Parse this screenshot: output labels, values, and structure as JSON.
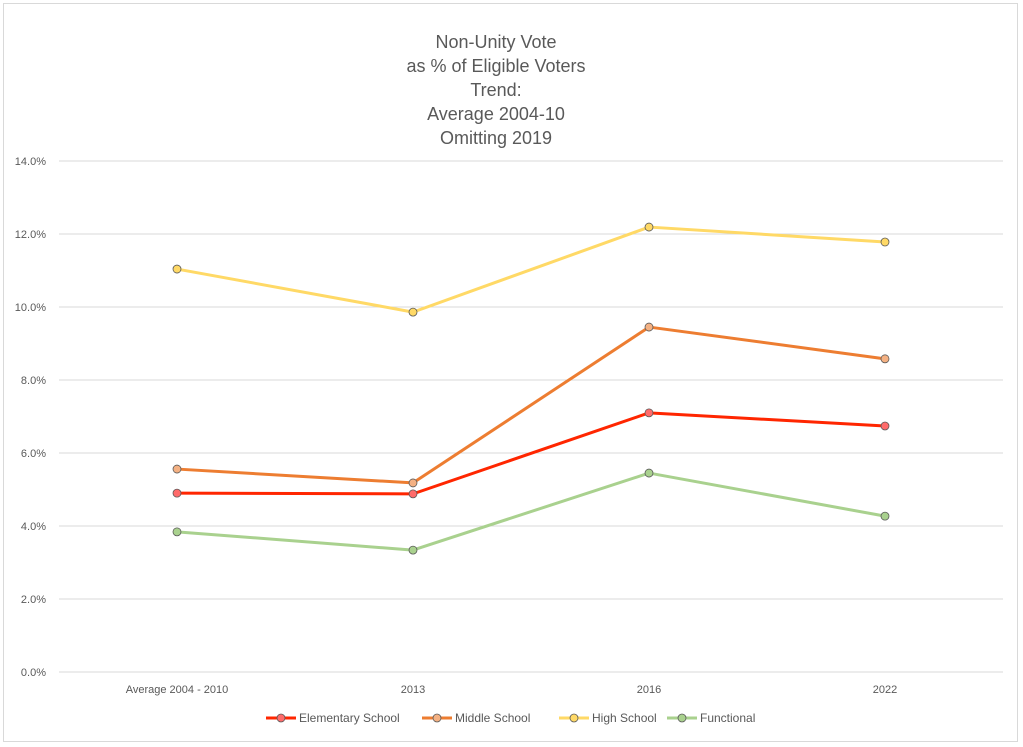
{
  "chart_data": {
    "type": "line",
    "title_lines": [
      "Non-Unity Vote",
      "as % of Eligible Voters",
      "Trend:",
      "Average 2004-10",
      "Omitting 2019"
    ],
    "categories": [
      "Average 2004 - 2010",
      "2013",
      "2016",
      "2022"
    ],
    "xlabel": "",
    "ylabel": "",
    "ylim": [
      0,
      14
    ],
    "yticks": [
      0,
      2,
      4,
      6,
      8,
      10,
      12,
      14
    ],
    "ytick_labels": [
      "0.0%",
      "2.0%",
      "4.0%",
      "6.0%",
      "8.0%",
      "10.0%",
      "12.0%",
      "14.0%"
    ],
    "grid": true,
    "legend_position": "bottom",
    "series": [
      {
        "name": "Elementary School",
        "color": "#ff2600",
        "marker_fill": "#ff6b6b",
        "values": [
          4.9,
          4.88,
          7.1,
          6.74
        ]
      },
      {
        "name": "Middle School",
        "color": "#ed7d31",
        "marker_fill": "#f4b183",
        "values": [
          5.56,
          5.18,
          9.45,
          8.58
        ]
      },
      {
        "name": "High School",
        "color": "#ffd966",
        "marker_fill": "#ffd966",
        "values": [
          11.04,
          9.86,
          12.19,
          11.78
        ]
      },
      {
        "name": "Functional",
        "color": "#a9d18e",
        "marker_fill": "#a9d18e",
        "values": [
          3.84,
          3.34,
          5.45,
          4.27
        ]
      }
    ]
  }
}
